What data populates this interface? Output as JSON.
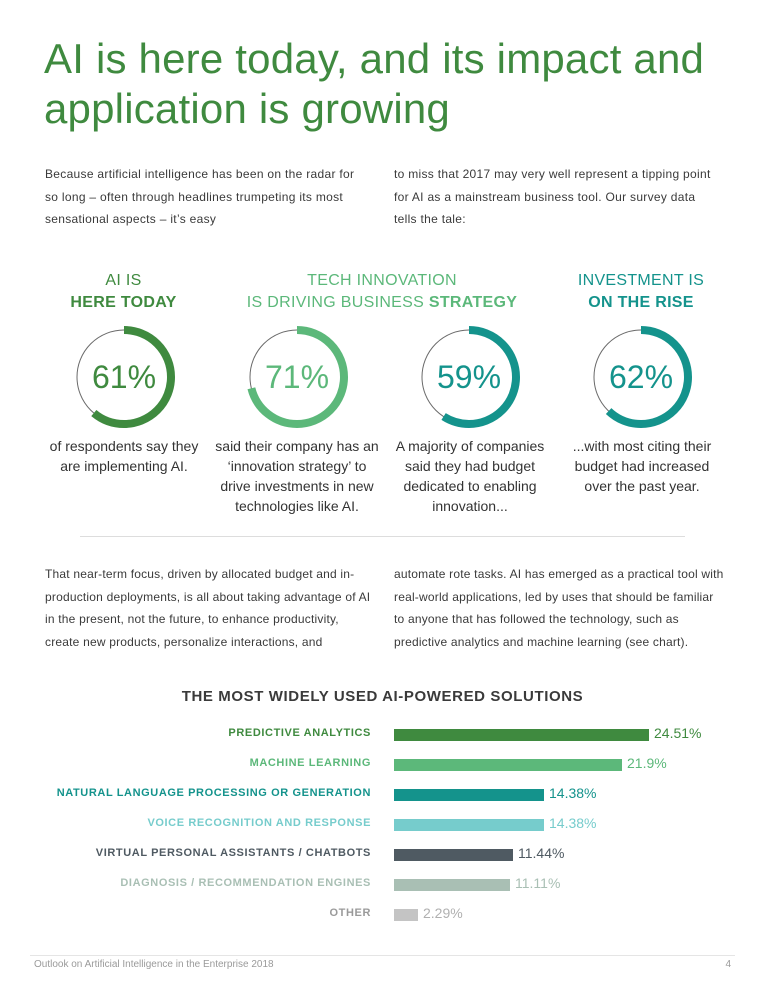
{
  "title": "AI is here today, and its impact and application is growing",
  "intro": {
    "col1": "Because artificial intelligence has been on the radar for so long – often through headlines trumpeting its most sensational aspects – it’s easy",
    "col2": "to miss that 2017 may very well represent a tipping point for AI as a mainstream business tool. Our survey data tells the tale:"
  },
  "stats": {
    "headings": [
      {
        "line1": "AI IS",
        "line2": "HERE TODAY",
        "color": "#3f8a3f"
      },
      {
        "line1": "TECH INNOVATION",
        "line2_light": "IS DRIVING BUSINESS ",
        "line2_bold": "STRATEGY",
        "color": "#5cb87a"
      },
      {
        "line1": "INVESTMENT IS",
        "line2": "ON THE RISE",
        "color": "#14938c"
      }
    ],
    "items": [
      {
        "value": 61,
        "label": "61%",
        "color": "#3f8a3f",
        "desc": "of respondents say they are implementing AI."
      },
      {
        "value": 71,
        "label": "71%",
        "color": "#5cb87a",
        "desc": "said their company has an ‘innovation strategy’ to drive investments in new technologies like AI."
      },
      {
        "value": 59,
        "label": "59%",
        "color": "#14938c",
        "desc": "A majority of companies said they had budget dedicated to enabling innovation..."
      },
      {
        "value": 62,
        "label": "62%",
        "color": "#14938c",
        "desc": "...with most citing their budget had increased over the past year."
      }
    ]
  },
  "body": {
    "col1": "That near-term focus, driven by allocated budget and in-production deployments, is all about taking advantage of AI in the present, not the future, to enhance productivity, create new products, personalize interactions, and",
    "col2": "automate rote tasks. AI has emerged as a practical tool with real-world applications, led by uses that should be familiar to anyone that has followed the technology, such as predictive analytics and machine learning (see chart)."
  },
  "chart_data": {
    "type": "bar",
    "title": "THE MOST WIDELY USED AI-POWERED SOLUTIONS",
    "categories": [
      "PREDICTIVE ANALYTICS",
      "MACHINE LEARNING",
      "NATURAL LANGUAGE PROCESSING OR GENERATION",
      "VOICE RECOGNITION AND RESPONSE",
      "VIRTUAL PERSONAL ASSISTANTS / CHATBOTS",
      "DIAGNOSIS / RECOMMENDATION ENGINES",
      "OTHER"
    ],
    "values": [
      24.51,
      21.9,
      14.38,
      14.38,
      11.44,
      11.11,
      2.29
    ],
    "value_labels": [
      "24.51%",
      "21.9%",
      "14.38%",
      "14.38%",
      "11.44%",
      "11.11%",
      "2.29%"
    ],
    "colors": [
      "#3f8a3f",
      "#5cb87a",
      "#14938c",
      "#76cccc",
      "#4f5a62",
      "#a9bfb4",
      "#c4c4c4"
    ],
    "orientation": "horizontal",
    "xlim": [
      0,
      24.51
    ]
  },
  "footer": {
    "text": "Outlook on Artificial Intelligence in the Enterprise 2018",
    "page": "4"
  }
}
